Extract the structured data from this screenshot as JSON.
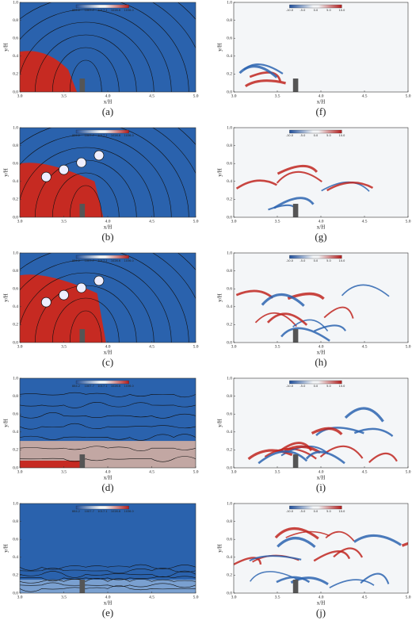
{
  "axes": {
    "xlabel": "x/H",
    "ylabel": "y/H",
    "xtick_labels": [
      "3.0",
      "3.5",
      "4.0",
      "4.5",
      "5.0"
    ],
    "ytick_labels": [
      "0.0",
      "0.2",
      "0.4",
      "0.6",
      "0.8",
      "1.0"
    ]
  },
  "colorbars": {
    "density": [
      "884.2",
      "1007.7",
      "1017.1",
      "1026.6",
      "1036.0"
    ],
    "vorticity": [
      "-10.0",
      "-5.0",
      "0.0",
      "5.0",
      "10.0"
    ]
  },
  "panels": {
    "left": [
      "(a)",
      "(b)",
      "(c)",
      "(d)",
      "(e)"
    ],
    "right": [
      "(f)",
      "(g)",
      "(h)",
      "(i)",
      "(j)"
    ]
  }
}
